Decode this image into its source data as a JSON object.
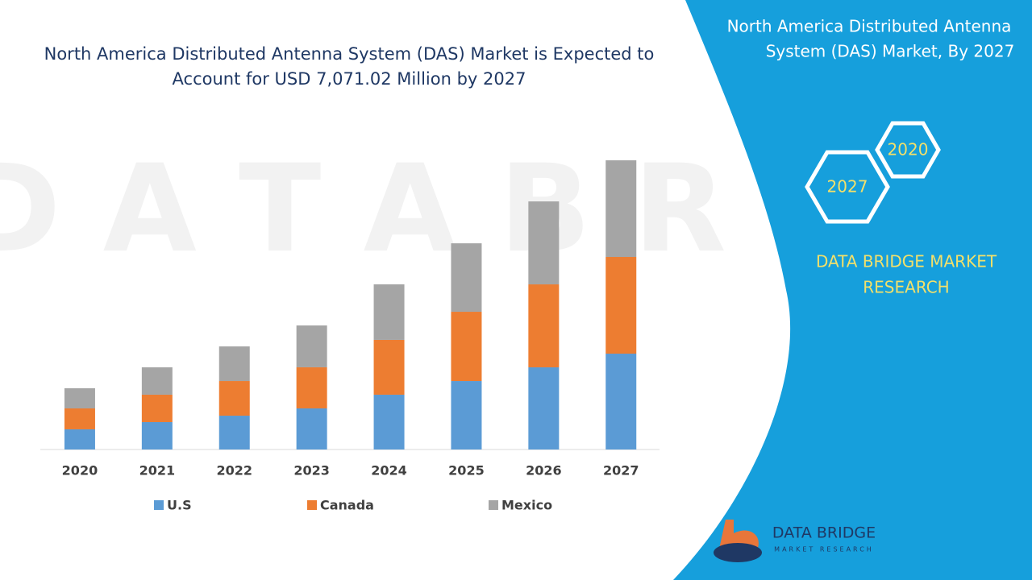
{
  "chart_data": {
    "type": "stacked-bar",
    "title": "North America Distributed Antenna System (DAS) Market is Expected to Account for USD 7,071.02 Million by 2027",
    "categories": [
      "2020",
      "2021",
      "2022",
      "2023",
      "2024",
      "2025",
      "2026",
      "2027"
    ],
    "series": [
      {
        "name": "U.S",
        "color": "#5b9bd5",
        "values": [
          493,
          670,
          827,
          1005,
          1340,
          1674,
          2009,
          2344
        ]
      },
      {
        "name": "Canada",
        "color": "#ed7d31",
        "values": [
          512,
          670,
          847,
          1005,
          1340,
          1694,
          2029,
          2364
        ]
      },
      {
        "name": "Mexico",
        "color": "#a5a5a5",
        "values": [
          493,
          670,
          847,
          1024,
          1359,
          1674,
          2029,
          2364
        ]
      }
    ],
    "legend": "bottom"
  },
  "sidebar": {
    "title": "North America Distributed Antenna System (DAS) Market, By 2027",
    "hexagons": [
      "2027",
      "2020"
    ],
    "brand": "DATA BRIDGE MARKET RESEARCH",
    "logo": {
      "name": "DATA BRIDGE",
      "tagline": "MARKET RESEARCH"
    }
  }
}
